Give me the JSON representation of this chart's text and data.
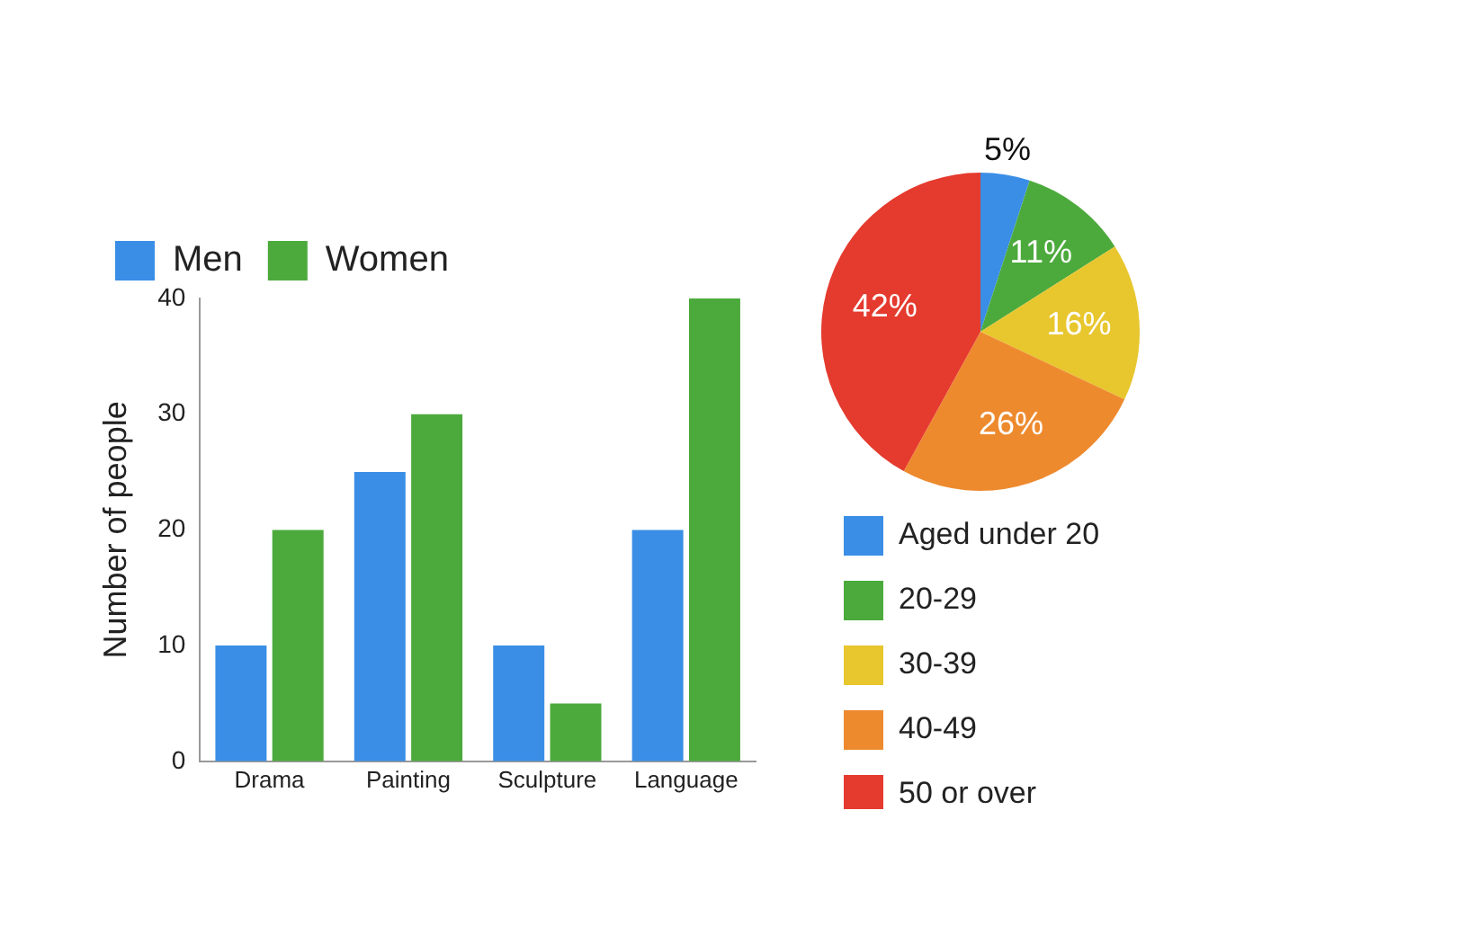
{
  "chart_data": [
    {
      "type": "bar",
      "ylabel": "Number of people",
      "categories": [
        "Drama",
        "Painting",
        "Sculpture",
        "Language"
      ],
      "series": [
        {
          "name": "Men",
          "color": "#3a8ee6",
          "values": [
            10,
            25,
            10,
            20
          ]
        },
        {
          "name": "Women",
          "color": "#4caa3c",
          "values": [
            20,
            30,
            5,
            40
          ]
        }
      ],
      "ylim": [
        0,
        40
      ],
      "yticks": [
        0,
        10,
        20,
        30,
        40
      ],
      "grid": false,
      "legend": "top left"
    },
    {
      "type": "pie",
      "categories": [
        "Aged under 20",
        "20-29",
        "30-39",
        "40-49",
        "50 or over"
      ],
      "values": [
        5,
        11,
        16,
        26,
        42
      ],
      "colors": [
        "#3a8ee6",
        "#4caa3c",
        "#e8c62e",
        "#ee8a2e",
        "#e53a2e"
      ],
      "value_labels": [
        "5%",
        "11%",
        "16%",
        "26%",
        "42%"
      ],
      "legend": "bottom"
    }
  ]
}
